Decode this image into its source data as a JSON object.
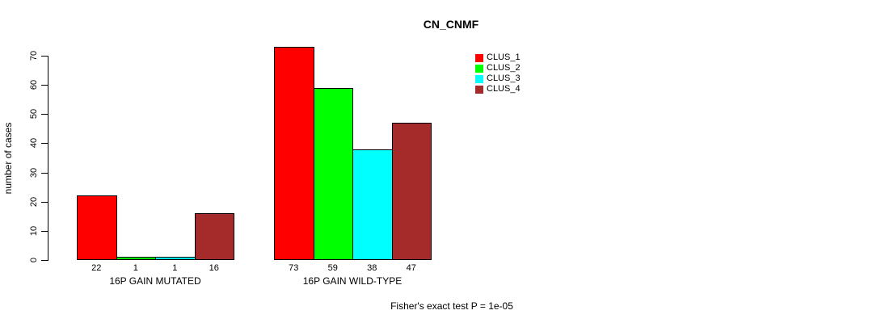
{
  "chart_data": {
    "type": "bar",
    "title": "CN_CNMF",
    "ylabel": "number of cases",
    "xlabel": "",
    "categories": [
      "16P GAIN MUTATED",
      "16P GAIN WILD-TYPE"
    ],
    "series": [
      {
        "name": "CLUS_1",
        "color": "#ff0000",
        "values": [
          22,
          73
        ]
      },
      {
        "name": "CLUS_2",
        "color": "#00ff00",
        "values": [
          1,
          59
        ]
      },
      {
        "name": "CLUS_3",
        "color": "#00ffff",
        "values": [
          1,
          38
        ]
      },
      {
        "name": "CLUS_4",
        "color": "#a52a2a",
        "values": [
          16,
          47
        ]
      }
    ],
    "yticks": [
      0,
      10,
      20,
      30,
      40,
      50,
      60,
      70
    ],
    "ylim": [
      0,
      70
    ],
    "bar_value_labels": [
      [
        "22",
        "1",
        "1",
        "16"
      ],
      [
        "73",
        "59",
        "38",
        "47"
      ]
    ],
    "legend_position": "top-right",
    "grid": false,
    "annotation": "Fisher's exact test P = 1e-05"
  }
}
